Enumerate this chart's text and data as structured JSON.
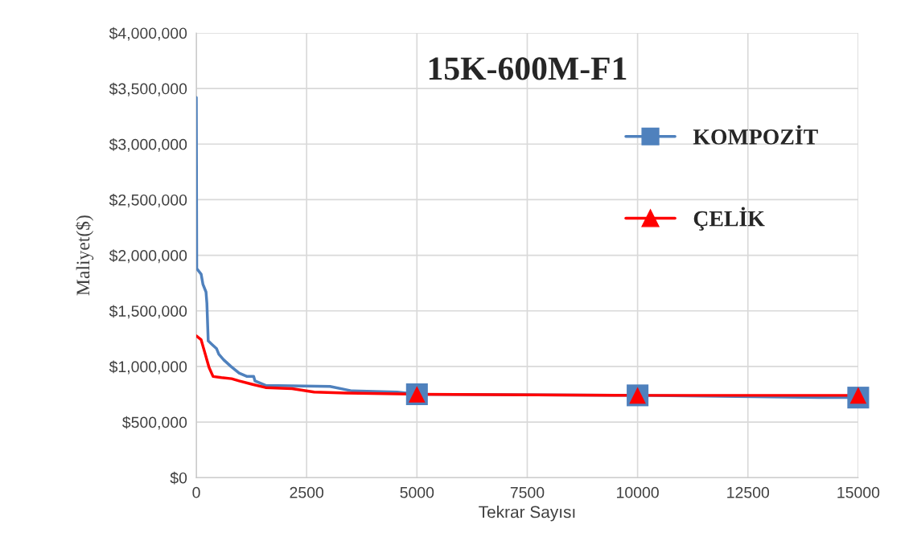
{
  "chart_data": {
    "type": "line",
    "title": "15K-600M-F1",
    "xlabel": "Tekrar Sayısı",
    "ylabel": "Maliyet($)",
    "xlim": [
      0,
      15000
    ],
    "xticks": [
      0,
      2500,
      5000,
      7500,
      10000,
      12500,
      15000
    ],
    "ylim": [
      0,
      4000000
    ],
    "yticks": [
      {
        "value": 0,
        "label": "$0"
      },
      {
        "value": 500000,
        "label": "$500,000"
      },
      {
        "value": 1000000,
        "label": "$1,000,000"
      },
      {
        "value": 1500000,
        "label": "$1,500,000"
      },
      {
        "value": 2000000,
        "label": "$2,000,000"
      },
      {
        "value": 2500000,
        "label": "$2,500,000"
      },
      {
        "value": 3000000,
        "label": "$3,000,000"
      },
      {
        "value": 3500000,
        "label": "$3,500,000"
      },
      {
        "value": 4000000,
        "label": "$4,000,000"
      }
    ],
    "grid": true,
    "legend": "right",
    "series": [
      {
        "name": "KOMPOZİT",
        "color": "#4f81bd",
        "x": [
          0,
          10,
          110,
          150,
          220,
          240,
          270,
          350,
          460,
          510,
          620,
          785,
          970,
          1150,
          1300,
          1330,
          1570,
          3030,
          3530,
          4550,
          5000,
          10000,
          14420,
          15000
        ],
        "values": [
          3420000,
          1880000,
          1830000,
          1740000,
          1670000,
          1570000,
          1230000,
          1200000,
          1160000,
          1110000,
          1060000,
          1000000,
          940000,
          910000,
          910000,
          870000,
          830000,
          820000,
          780000,
          770000,
          750000,
          740000,
          720000,
          720000
        ]
      },
      {
        "name": "ÇELİK",
        "color": "#ff0000",
        "x": [
          0,
          110,
          160,
          290,
          380,
          570,
          800,
          970,
          1260,
          1570,
          2170,
          2670,
          3400,
          5000,
          10000,
          15000
        ],
        "values": [
          1275000,
          1240000,
          1170000,
          990000,
          910000,
          900000,
          890000,
          870000,
          840000,
          810000,
          800000,
          770000,
          760000,
          750000,
          740000,
          740000
        ]
      },
      {
        "color": "#4f81bd",
        "type": "scatter",
        "marker": "square",
        "x": [
          5000,
          10000,
          15000
        ],
        "values": [
          750000,
          740000,
          720000
        ]
      },
      {
        "color": "#ff0000",
        "type": "scatter",
        "marker": "triangle",
        "x": [
          5000,
          10000,
          15000
        ],
        "values": [
          750000,
          740000,
          740000
        ]
      }
    ]
  }
}
